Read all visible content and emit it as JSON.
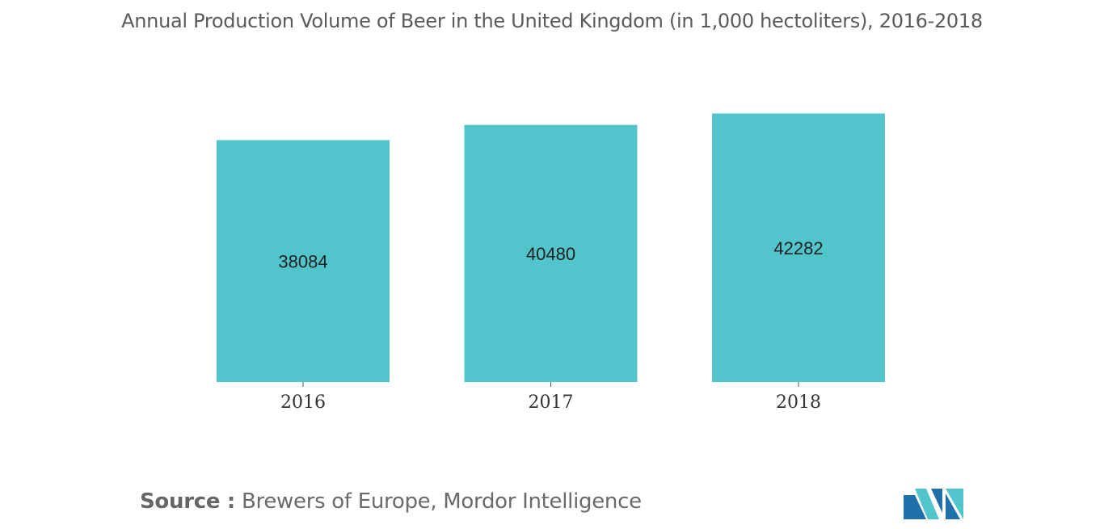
{
  "chart_data": {
    "type": "bar",
    "title": "Annual Production Volume of Beer in the United Kingdom (in 1,000 hectoliters), 2016-2018",
    "categories": [
      "2016",
      "2017",
      "2018"
    ],
    "values": [
      38084,
      40480,
      42282
    ],
    "data_labels": [
      "38084",
      "40480",
      "42282"
    ],
    "xlabel": "",
    "ylabel": "",
    "ylim": [
      0,
      44000
    ],
    "grid": false,
    "legend": "none",
    "bar_color": "#52c4cb"
  },
  "source": {
    "label": "Source :",
    "text": " Brewers of Europe, Mordor Intelligence"
  },
  "logo": {
    "icon": "mordor-intelligence-logo-icon",
    "colors": [
      "#1f6fa8",
      "#52c4cb"
    ]
  }
}
